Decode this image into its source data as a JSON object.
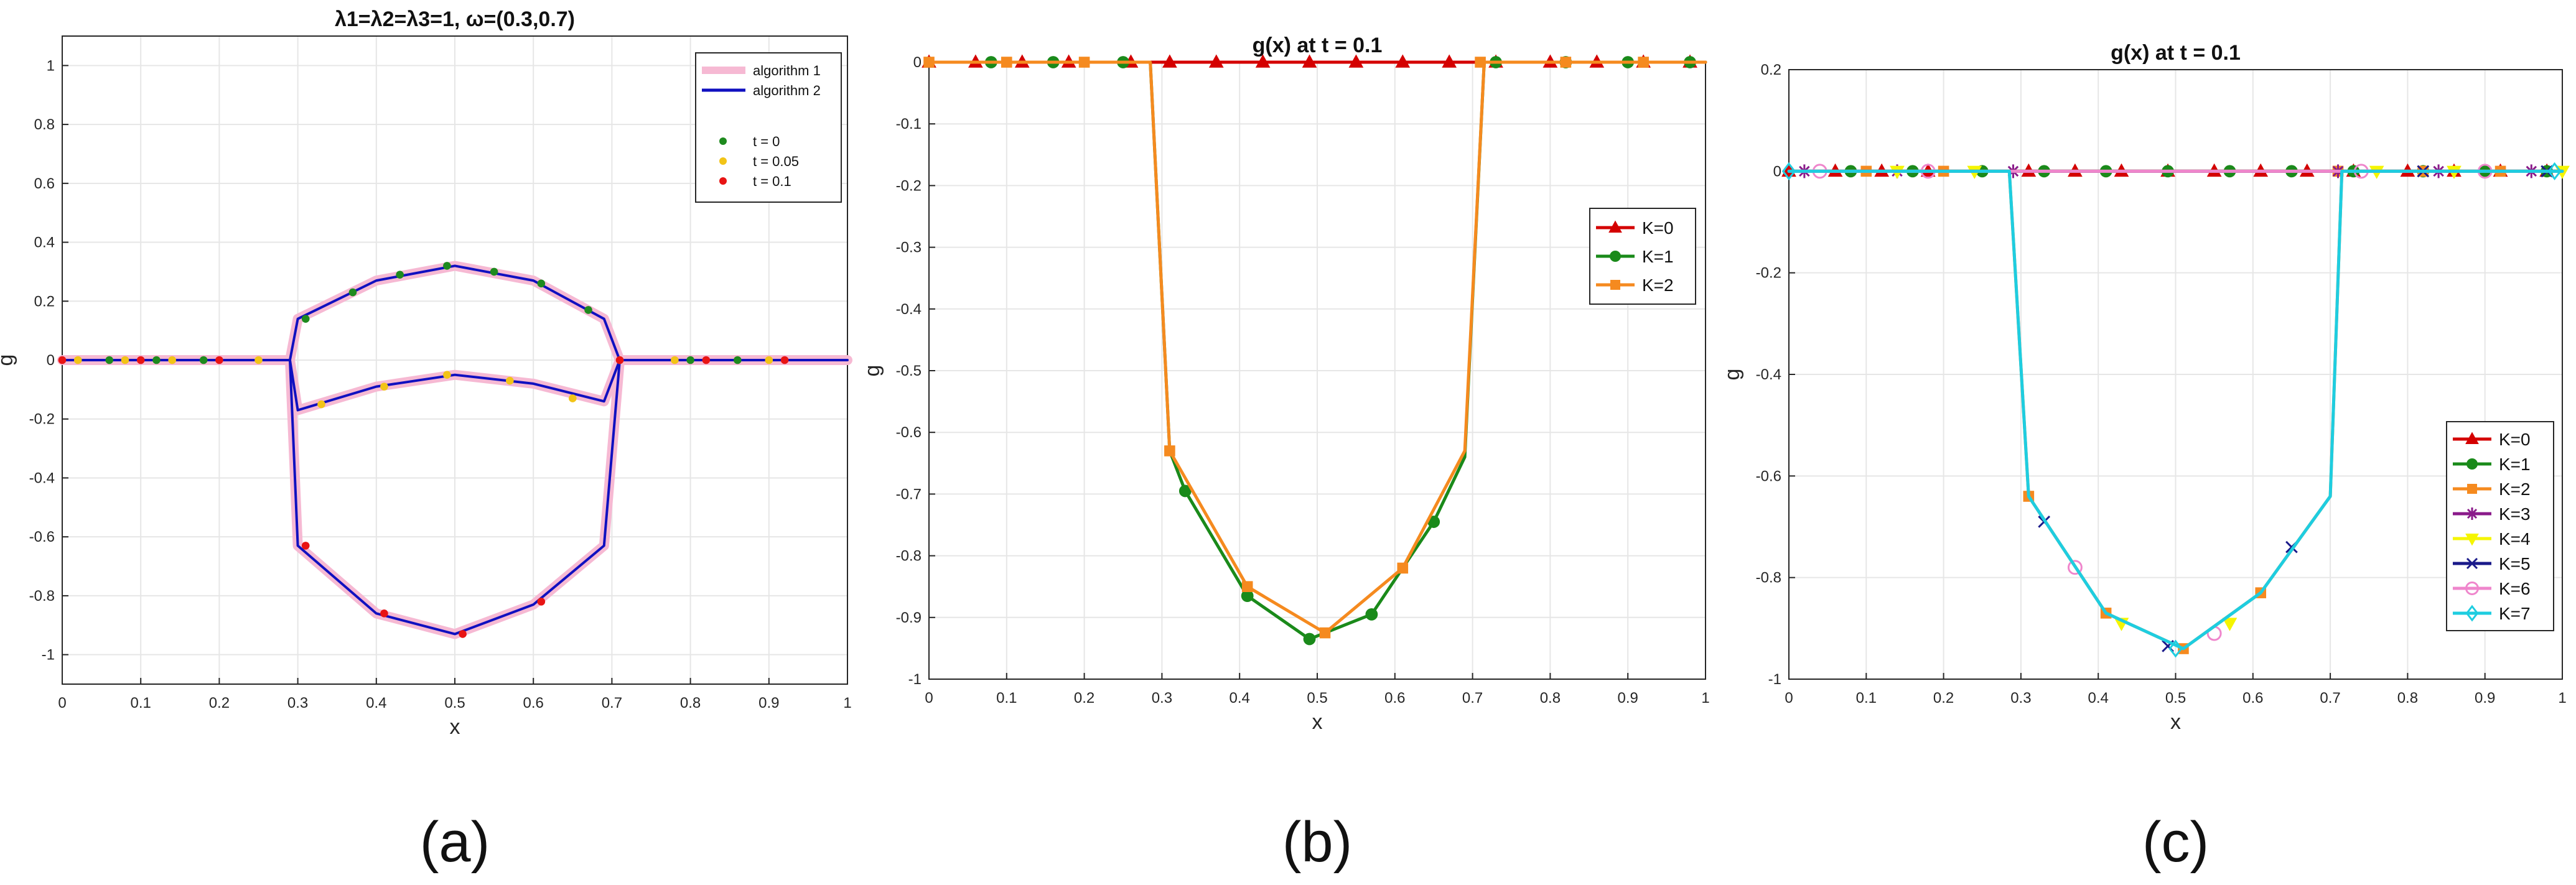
{
  "chart_data": [
    {
      "type": "line",
      "title": "λ1=λ2=λ3=1, ω=(0.3,0.7)",
      "xlabel": "x",
      "ylabel": "g",
      "xlim": [
        0,
        1
      ],
      "ylim": [
        -1.1,
        1.1
      ],
      "xticks": [
        "0",
        "0.1",
        "0.2",
        "0.3",
        "0.4",
        "0.5",
        "0.6",
        "0.7",
        "0.8",
        "0.9",
        "1"
      ],
      "yticks": [
        "-1",
        "-0.8",
        "-0.6",
        "-0.4",
        "-0.2",
        "0",
        "0.2",
        "0.4",
        "0.6",
        "0.8",
        "1"
      ],
      "grid": true,
      "legend_position": "top-right",
      "caption": "(a)",
      "series": [
        {
          "name": "algorithm 1",
          "role": "line",
          "color": "#f6b9d3",
          "x": [
            0,
            0.29,
            0.3,
            0.4,
            0.5,
            0.6,
            0.69,
            0.71,
            1
          ],
          "y": [
            0,
            0,
            0.14,
            0.27,
            0.32,
            0.27,
            0.14,
            0,
            0
          ]
        },
        {
          "name": "algorithm 1",
          "role": "line",
          "color": "#f6b9d3",
          "x": [
            0.29,
            0.3,
            0.4,
            0.5,
            0.6,
            0.69,
            0.71
          ],
          "y": [
            0,
            -0.17,
            -0.09,
            -0.05,
            -0.08,
            -0.14,
            0
          ]
        },
        {
          "name": "algorithm 1",
          "role": "line",
          "color": "#f6b9d3",
          "x": [
            0.29,
            0.3,
            0.4,
            0.5,
            0.6,
            0.69,
            0.71
          ],
          "y": [
            0,
            -0.63,
            -0.86,
            -0.93,
            -0.83,
            -0.63,
            0
          ]
        },
        {
          "name": "algorithm 2",
          "role": "line",
          "color": "#1010c0",
          "x": [
            0,
            0.29,
            0.3,
            0.4,
            0.5,
            0.6,
            0.69,
            0.71,
            1
          ],
          "y": [
            0,
            0,
            0.14,
            0.27,
            0.32,
            0.27,
            0.14,
            0,
            0
          ]
        },
        {
          "name": "algorithm 2",
          "role": "line",
          "color": "#1010c0",
          "x": [
            0.29,
            0.3,
            0.4,
            0.5,
            0.6,
            0.69,
            0.71
          ],
          "y": [
            0,
            -0.17,
            -0.09,
            -0.05,
            -0.08,
            -0.14,
            0
          ]
        },
        {
          "name": "algorithm 2",
          "role": "line",
          "color": "#1010c0",
          "x": [
            0.29,
            0.3,
            0.4,
            0.5,
            0.6,
            0.69,
            0.71
          ],
          "y": [
            0,
            -0.63,
            -0.86,
            -0.93,
            -0.83,
            -0.63,
            0
          ]
        },
        {
          "name": "t = 0",
          "role": "markers",
          "color": "#1e8a1e",
          "x": [
            0.06,
            0.12,
            0.18,
            0.31,
            0.37,
            0.43,
            0.49,
            0.55,
            0.61,
            0.67,
            0.8,
            0.86
          ],
          "y": [
            0,
            0,
            0,
            0.14,
            0.23,
            0.29,
            0.32,
            0.3,
            0.26,
            0.17,
            0,
            0
          ]
        },
        {
          "name": "t = 0.05",
          "role": "markers",
          "color": "#f2c417",
          "x": [
            0.02,
            0.08,
            0.14,
            0.25,
            0.33,
            0.41,
            0.49,
            0.57,
            0.65,
            0.71,
            0.78,
            0.9
          ],
          "y": [
            0,
            0,
            0,
            0,
            -0.15,
            -0.09,
            -0.05,
            -0.07,
            -0.13,
            0,
            0,
            0
          ]
        },
        {
          "name": "t = 0.1",
          "role": "markers",
          "color": "#e81414",
          "x": [
            0,
            0.1,
            0.2,
            0.31,
            0.41,
            0.51,
            0.61,
            0.71,
            0.82,
            0.92
          ],
          "y": [
            0,
            0,
            0,
            -0.63,
            -0.86,
            -0.93,
            -0.82,
            0,
            0,
            0
          ]
        }
      ]
    },
    {
      "type": "line",
      "title": "g(x) at t = 0.1",
      "xlabel": "x",
      "ylabel": "g",
      "xlim": [
        0,
        1
      ],
      "ylim": [
        -1,
        0
      ],
      "xticks": [
        "0",
        "0.1",
        "0.2",
        "0.3",
        "0.4",
        "0.5",
        "0.6",
        "0.7",
        "0.8",
        "0.9",
        "1"
      ],
      "yticks": [
        "-1",
        "-0.9",
        "-0.8",
        "-0.7",
        "-0.6",
        "-0.5",
        "-0.4",
        "-0.3",
        "-0.2",
        "-0.1",
        "0"
      ],
      "grid": true,
      "legend_position": "right",
      "caption": "(b)",
      "series": [
        {
          "name": "K=0",
          "color": "#d40000",
          "marker": "triangle",
          "x": [
            0,
            0.3,
            0.7,
            1
          ],
          "y": [
            0,
            0,
            0,
            0
          ],
          "marker_x": [
            0,
            0.06,
            0.12,
            0.18,
            0.26,
            0.31,
            0.37,
            0.43,
            0.49,
            0.55,
            0.61,
            0.67,
            0.73,
            0.8,
            0.86,
            0.92,
            0.98
          ],
          "marker_y": [
            0,
            0,
            0,
            0,
            0,
            0,
            0,
            0,
            0,
            0,
            0,
            0,
            0,
            0,
            0,
            0,
            0
          ]
        },
        {
          "name": "K=1",
          "color": "#1a8a1a",
          "marker": "circle",
          "x": [
            0,
            0.285,
            0.31,
            0.33,
            0.41,
            0.49,
            0.57,
            0.65,
            0.69,
            0.715,
            1
          ],
          "y": [
            0,
            0,
            -0.63,
            -0.695,
            -0.865,
            -0.935,
            -0.895,
            -0.745,
            -0.64,
            0,
            0
          ],
          "marker_x": [
            0.08,
            0.16,
            0.25,
            0.33,
            0.41,
            0.49,
            0.57,
            0.65,
            0.73,
            0.82,
            0.9,
            0.98
          ],
          "marker_y": [
            0,
            0,
            0,
            -0.695,
            -0.865,
            -0.935,
            -0.895,
            -0.745,
            0,
            0,
            0,
            0
          ]
        },
        {
          "name": "K=2",
          "color": "#f58a1f",
          "marker": "square",
          "x": [
            0,
            0.285,
            0.31,
            0.41,
            0.51,
            0.61,
            0.69,
            0.715,
            1
          ],
          "y": [
            0,
            0,
            -0.63,
            -0.85,
            -0.925,
            -0.82,
            -0.63,
            0,
            0
          ],
          "marker_x": [
            0,
            0.1,
            0.2,
            0.31,
            0.41,
            0.51,
            0.61,
            0.71,
            0.82,
            0.92
          ],
          "marker_y": [
            0,
            0,
            0,
            -0.63,
            -0.85,
            -0.925,
            -0.82,
            0,
            0,
            0
          ]
        }
      ]
    },
    {
      "type": "line",
      "title": "g(x) at t = 0.1",
      "xlabel": "x",
      "ylabel": "g",
      "xlim": [
        0,
        1
      ],
      "ylim": [
        -1,
        0.2
      ],
      "xticks": [
        "0",
        "0.1",
        "0.2",
        "0.3",
        "0.4",
        "0.5",
        "0.6",
        "0.7",
        "0.8",
        "0.9",
        "1"
      ],
      "yticks": [
        "-1",
        "-0.8",
        "-0.6",
        "-0.4",
        "-0.2",
        "0",
        "0.2"
      ],
      "grid": true,
      "legend_position": "bottom-right",
      "caption": "(c)",
      "series": [
        {
          "name": "K=0",
          "color": "#d40000",
          "marker": "triangle",
          "x": [
            0,
            1
          ],
          "y": [
            0,
            0
          ],
          "marker_x": [
            0,
            0.06,
            0.12,
            0.18,
            0.31,
            0.37,
            0.43,
            0.49,
            0.55,
            0.61,
            0.67,
            0.73,
            0.8,
            0.86,
            0.92,
            0.98
          ],
          "marker_y": [
            0,
            0,
            0,
            0,
            0,
            0,
            0,
            0,
            0,
            0,
            0,
            0,
            0,
            0,
            0,
            0
          ]
        },
        {
          "name": "K=1",
          "color": "#1a8a1a",
          "marker": "circle",
          "x": [
            0,
            1
          ],
          "y": [
            0,
            0
          ],
          "marker_x": [
            0.08,
            0.16,
            0.25,
            0.33,
            0.41,
            0.49,
            0.57,
            0.65,
            0.73,
            0.82,
            0.9,
            0.98
          ],
          "marker_y": [
            0,
            0,
            0,
            0,
            0,
            0,
            0,
            0,
            0,
            0,
            0,
            0
          ]
        },
        {
          "name": "K=2",
          "color": "#f58a1f",
          "marker": "square",
          "x": [
            0,
            0.285,
            0.31,
            0.41,
            0.51,
            0.61,
            0.7,
            0.715,
            1
          ],
          "y": [
            0,
            0,
            -0.64,
            -0.87,
            -0.94,
            -0.83,
            -0.64,
            0,
            0
          ],
          "marker_x": [
            0.1,
            0.2,
            0.31,
            0.41,
            0.51,
            0.61,
            0.71,
            0.82,
            0.92
          ],
          "marker_y": [
            0,
            0,
            -0.64,
            -0.87,
            -0.94,
            -0.83,
            0,
            0,
            0
          ]
        },
        {
          "name": "K=3",
          "color": "#8a1a8a",
          "marker": "asterisk",
          "x": [
            0,
            1
          ],
          "y": [
            0,
            0
          ],
          "marker_x": [
            0.02,
            0.14,
            0.29,
            0.71,
            0.84,
            0.96
          ],
          "marker_y": [
            0,
            0,
            0,
            0,
            0,
            0
          ]
        },
        {
          "name": "K=4",
          "color": "#f5f500",
          "marker": "triangle-down",
          "x": [
            0,
            1
          ],
          "y": [
            0,
            0
          ],
          "marker_x": [
            0.14,
            0.24,
            0.43,
            0.57,
            0.76,
            0.86,
            1.0
          ],
          "marker_y": [
            0,
            0,
            -0.89,
            -0.89,
            0,
            0,
            0
          ]
        },
        {
          "name": "K=5",
          "color": "#1a1a8a",
          "marker": "x",
          "x": [
            0,
            1
          ],
          "y": [
            0,
            0
          ],
          "marker_x": [
            0.33,
            0.49,
            0.65,
            0.82,
            0.98
          ],
          "marker_y": [
            -0.69,
            -0.935,
            -0.74,
            0,
            0
          ]
        },
        {
          "name": "K=6",
          "color": "#ef86cc",
          "marker": "circle-open",
          "x": [
            0,
            1
          ],
          "y": [
            0,
            0
          ],
          "marker_x": [
            0.04,
            0.18,
            0.37,
            0.55,
            0.74,
            0.9
          ],
          "marker_y": [
            0,
            0,
            -0.78,
            -0.91,
            0,
            0
          ]
        },
        {
          "name": "K=7",
          "color": "#1ecde0",
          "marker": "diamond-open",
          "x": [
            0,
            0.285,
            0.31,
            0.41,
            0.51,
            0.61,
            0.7,
            0.715,
            1
          ],
          "y": [
            0,
            0,
            -0.64,
            -0.87,
            -0.94,
            -0.83,
            -0.64,
            0,
            0
          ],
          "marker_x": [
            0,
            0.5,
            0.99
          ],
          "marker_y": [
            0,
            -0.94,
            0
          ]
        }
      ]
    }
  ]
}
